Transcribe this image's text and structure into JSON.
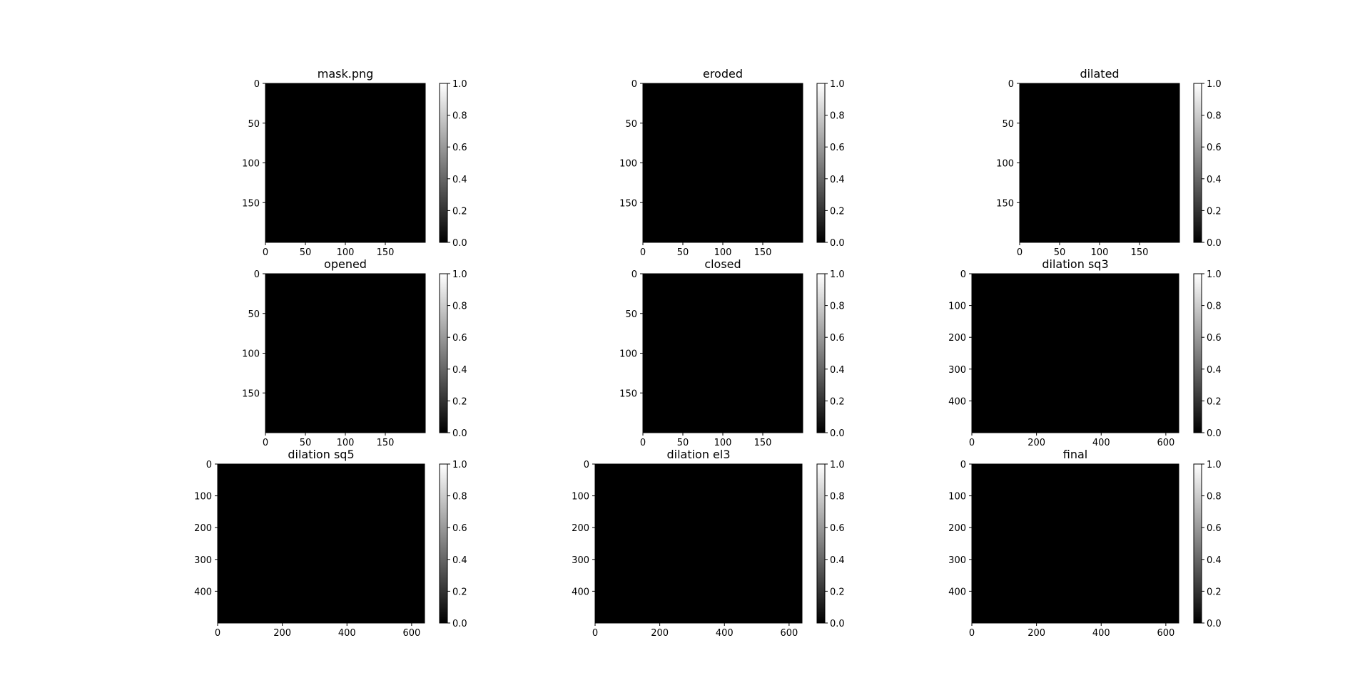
{
  "figure": {
    "background": "#ffffff",
    "colormap": "gray"
  },
  "chart_data": [
    {
      "type": "heatmap",
      "title": "mask.png",
      "image": "mask",
      "xlim": [
        0,
        200
      ],
      "ylim": [
        200,
        0
      ],
      "xticks": [
        "0",
        "50",
        "100",
        "150"
      ],
      "yticks": [
        "0",
        "50",
        "100",
        "150"
      ],
      "colorbar": {
        "range": [
          0,
          1
        ],
        "ticks": [
          "0.0",
          "0.2",
          "0.4",
          "0.6",
          "0.8",
          "1.0"
        ]
      }
    },
    {
      "type": "heatmap",
      "title": "eroded",
      "image": "eroded",
      "xlim": [
        0,
        200
      ],
      "ylim": [
        200,
        0
      ],
      "xticks": [
        "0",
        "50",
        "100",
        "150"
      ],
      "yticks": [
        "0",
        "50",
        "100",
        "150"
      ],
      "colorbar": {
        "range": [
          0,
          1
        ],
        "ticks": [
          "0.0",
          "0.2",
          "0.4",
          "0.6",
          "0.8",
          "1.0"
        ]
      }
    },
    {
      "type": "heatmap",
      "title": "dilated",
      "image": "dilated",
      "xlim": [
        0,
        200
      ],
      "ylim": [
        200,
        0
      ],
      "xticks": [
        "0",
        "50",
        "100",
        "150"
      ],
      "yticks": [
        "0",
        "50",
        "100",
        "150"
      ],
      "colorbar": {
        "range": [
          0,
          1
        ],
        "ticks": [
          "0.0",
          "0.2",
          "0.4",
          "0.6",
          "0.8",
          "1.0"
        ]
      }
    },
    {
      "type": "heatmap",
      "title": "opened",
      "image": "opened",
      "xlim": [
        0,
        200
      ],
      "ylim": [
        200,
        0
      ],
      "xticks": [
        "0",
        "50",
        "100",
        "150"
      ],
      "yticks": [
        "0",
        "50",
        "100",
        "150"
      ],
      "colorbar": {
        "range": [
          0,
          1
        ],
        "ticks": [
          "0.0",
          "0.2",
          "0.4",
          "0.6",
          "0.8",
          "1.0"
        ]
      }
    },
    {
      "type": "heatmap",
      "title": "closed",
      "image": "closed",
      "xlim": [
        0,
        200
      ],
      "ylim": [
        200,
        0
      ],
      "xticks": [
        "0",
        "50",
        "100",
        "150"
      ],
      "yticks": [
        "0",
        "50",
        "100",
        "150"
      ],
      "colorbar": {
        "range": [
          0,
          1
        ],
        "ticks": [
          "0.0",
          "0.2",
          "0.4",
          "0.6",
          "0.8",
          "1.0"
        ]
      }
    },
    {
      "type": "heatmap",
      "title": "dilation sq3",
      "image": "bird_sq3",
      "xlim": [
        0,
        640
      ],
      "ylim": [
        500,
        0
      ],
      "xticks": [
        "0",
        "200",
        "400",
        "600"
      ],
      "yticks": [
        "0",
        "100",
        "200",
        "300",
        "400"
      ],
      "colorbar": {
        "range": [
          0,
          1
        ],
        "ticks": [
          "0.0",
          "0.2",
          "0.4",
          "0.6",
          "0.8",
          "1.0"
        ]
      }
    },
    {
      "type": "heatmap",
      "title": "dilation sq5",
      "image": "bird_sq5",
      "xlim": [
        0,
        640
      ],
      "ylim": [
        500,
        0
      ],
      "xticks": [
        "0",
        "200",
        "400",
        "600"
      ],
      "yticks": [
        "0",
        "100",
        "200",
        "300",
        "400"
      ],
      "colorbar": {
        "range": [
          0,
          1
        ],
        "ticks": [
          "0.0",
          "0.2",
          "0.4",
          "0.6",
          "0.8",
          "1.0"
        ]
      }
    },
    {
      "type": "heatmap",
      "title": "dilation el3",
      "image": "bird_el3",
      "xlim": [
        0,
        640
      ],
      "ylim": [
        500,
        0
      ],
      "xticks": [
        "0",
        "200",
        "400",
        "600"
      ],
      "yticks": [
        "0",
        "100",
        "200",
        "300",
        "400"
      ],
      "colorbar": {
        "range": [
          0,
          1
        ],
        "ticks": [
          "0.0",
          "0.2",
          "0.4",
          "0.6",
          "0.8",
          "1.0"
        ]
      }
    },
    {
      "type": "heatmap",
      "title": "final",
      "image": "bird_final",
      "xlim": [
        0,
        640
      ],
      "ylim": [
        500,
        0
      ],
      "xticks": [
        "0",
        "200",
        "400",
        "600"
      ],
      "yticks": [
        "0",
        "100",
        "200",
        "300",
        "400"
      ],
      "colorbar": {
        "range": [
          0,
          1
        ],
        "ticks": [
          "0.0",
          "0.2",
          "0.4",
          "0.6",
          "0.8",
          "1.0"
        ]
      }
    }
  ]
}
